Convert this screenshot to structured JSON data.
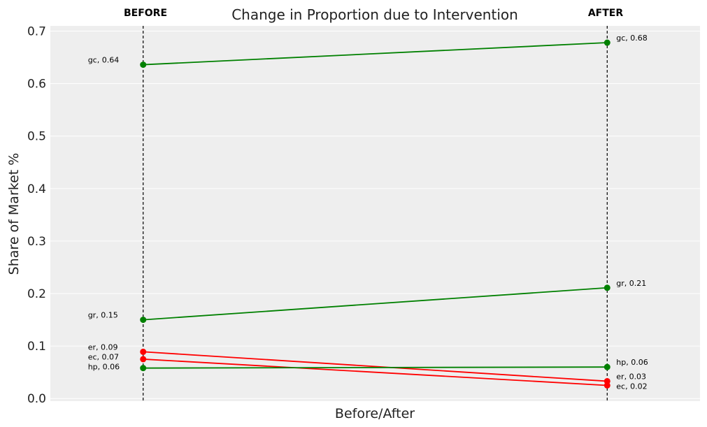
{
  "chart_data": {
    "type": "line",
    "title": "Change in Proportion due to Intervention",
    "xlabel": "Before/After",
    "ylabel": "Share of Market %",
    "x_categories": [
      "BEFORE",
      "AFTER"
    ],
    "x": [
      1,
      3
    ],
    "xlim": [
      0.6,
      3.4
    ],
    "ylim": [
      -0.005,
      0.71
    ],
    "yticks": [
      0.0,
      0.1,
      0.2,
      0.3,
      0.4,
      0.5,
      0.6,
      0.7
    ],
    "ytick_labels": [
      "0.0",
      "0.1",
      "0.2",
      "0.3",
      "0.4",
      "0.5",
      "0.6",
      "0.7"
    ],
    "grid": true,
    "background": "#eeeeee",
    "colors": {
      "increase": "#008000",
      "decrease": "#ff0000"
    },
    "series": [
      {
        "name": "gc",
        "values": [
          0.636,
          0.678
        ],
        "labels": [
          "gc, 0.64",
          "gc, 0.68"
        ],
        "color": "#008000"
      },
      {
        "name": "gr",
        "values": [
          0.15,
          0.211
        ],
        "labels": [
          "gr, 0.15",
          "gr, 0.21"
        ],
        "color": "#008000"
      },
      {
        "name": "er",
        "values": [
          0.089,
          0.033
        ],
        "labels": [
          "er, 0.09",
          "er, 0.03"
        ],
        "color": "#ff0000"
      },
      {
        "name": "ec",
        "values": [
          0.075,
          0.025
        ],
        "labels": [
          "ec, 0.07",
          "ec, 0.02"
        ],
        "color": "#ff0000"
      },
      {
        "name": "hp",
        "values": [
          0.058,
          0.06
        ],
        "labels": [
          "hp, 0.06",
          "hp, 0.06"
        ],
        "color": "#008000"
      }
    ]
  }
}
